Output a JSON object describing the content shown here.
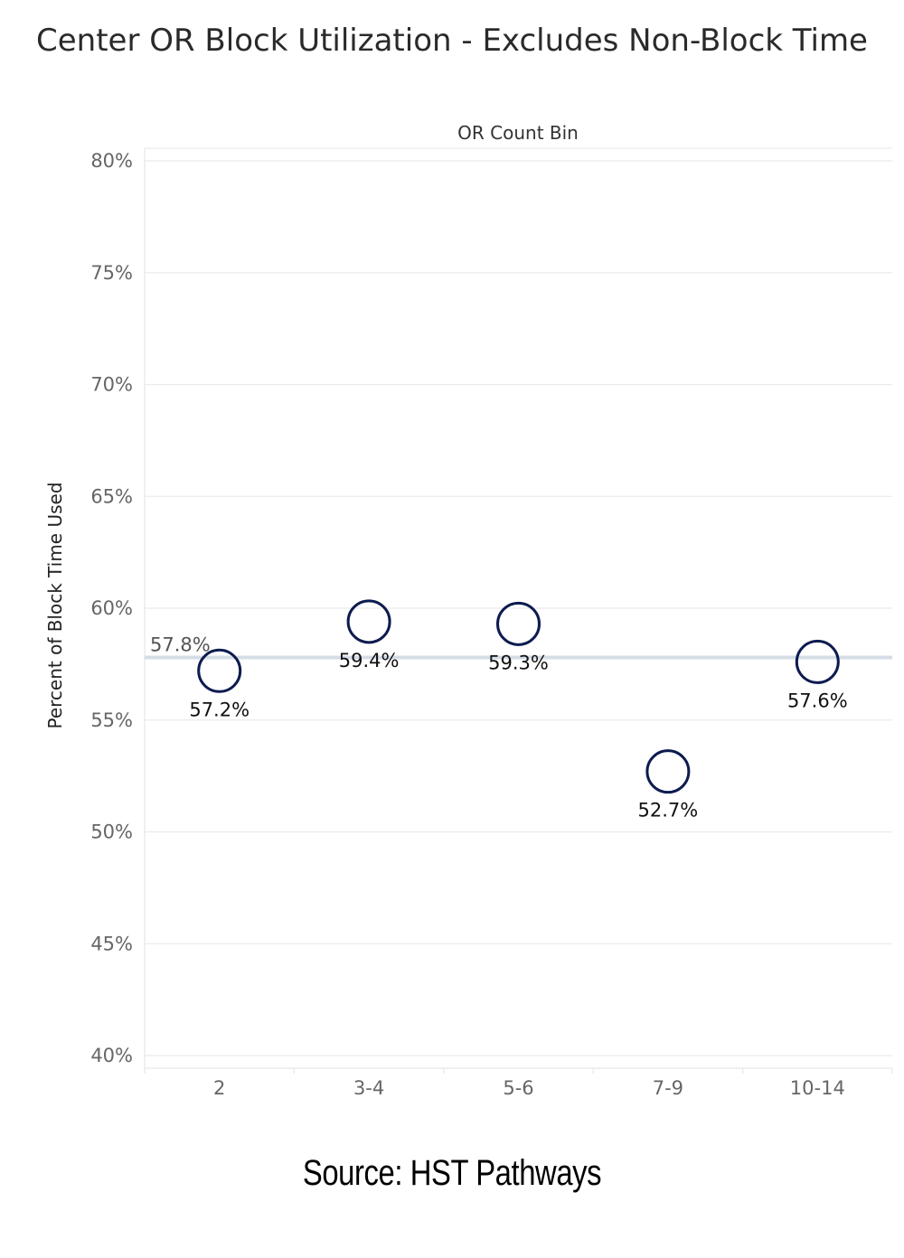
{
  "title": "Center OR Block Utilization - Excludes Non-Block Time",
  "source": "Source: HST Pathways",
  "chart_data": {
    "type": "scatter",
    "facet_label": "OR Count Bin",
    "ylabel": "Percent of Block Time Used",
    "xlabel": "",
    "ylim": [
      40,
      80
    ],
    "yticks": [
      40,
      45,
      50,
      55,
      60,
      65,
      70,
      75,
      80
    ],
    "ytick_labels": [
      "40%",
      "45%",
      "50%",
      "55%",
      "60%",
      "65%",
      "70%",
      "75%",
      "80%"
    ],
    "categories": [
      "2",
      "3-4",
      "5-6",
      "7-9",
      "10-14"
    ],
    "values": [
      57.2,
      59.4,
      59.3,
      52.7,
      57.6
    ],
    "data_labels": [
      "57.2%",
      "59.4%",
      "59.3%",
      "52.7%",
      "57.6%"
    ],
    "reference_line": {
      "value": 57.8,
      "label": "57.8%"
    },
    "grid": true,
    "colors": {
      "marker": "#0d1b4f",
      "reference_line": "#d5dde6",
      "grid": "#ebebeb"
    }
  }
}
